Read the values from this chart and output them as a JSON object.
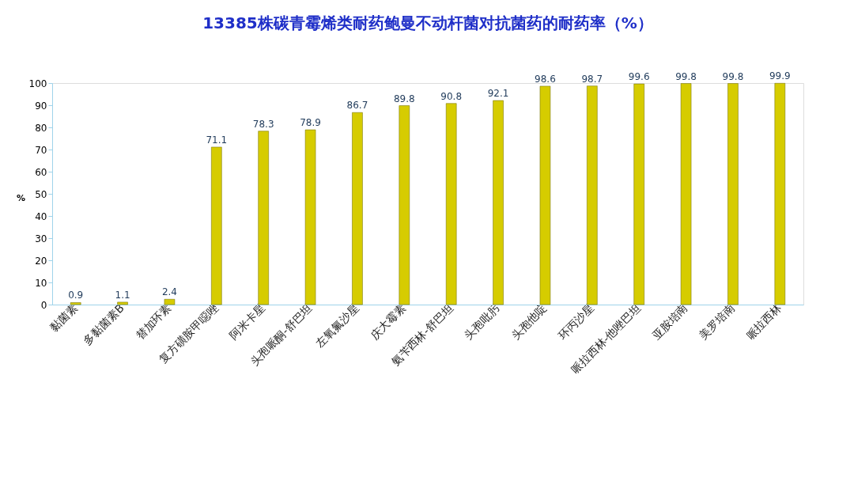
{
  "chart_data": {
    "type": "bar",
    "title": "13385株碳青霉烯类耐药鲍曼不动杆菌对抗菌药的耐药率（%）",
    "ylabel": "%",
    "categories": [
      "黏菌素",
      "多黏菌素B",
      "替加环素",
      "复方磺胺甲噁唑",
      "阿米卡星",
      "头孢哌酮-舒巴坦",
      "左氧氟沙星",
      "庆大霉素",
      "氨苄西林-舒巴坦",
      "头孢吡肟",
      "头孢他啶",
      "环丙沙星",
      "哌拉西林-他唑巴坦",
      "亚胺培南",
      "美罗培南",
      "哌拉西林"
    ],
    "values": [
      0.9,
      1.1,
      2.4,
      71.1,
      78.3,
      78.9,
      86.7,
      89.8,
      90.8,
      92.1,
      98.6,
      98.7,
      99.6,
      99.8,
      99.8,
      99.9
    ],
    "color": "#d6cc00",
    "ylim": [
      0,
      100
    ],
    "yticks": [
      0,
      10,
      20,
      30,
      40,
      50,
      60,
      70,
      80,
      90,
      100
    ],
    "grid": false,
    "data_labels": true
  }
}
